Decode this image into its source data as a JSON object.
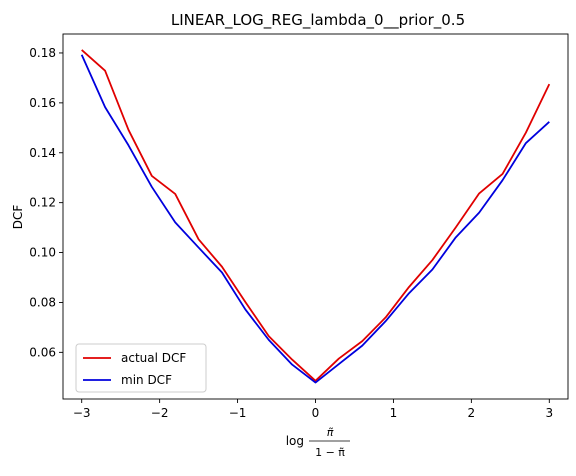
{
  "chart_data": {
    "type": "line",
    "title": "LINEAR_LOG_REG_lambda_0__prior_0.5",
    "ylabel": "DCF",
    "xlabel_prefix": "log",
    "xlabel_numerator": "π̃",
    "xlabel_denominator": "1 − π̃",
    "xlim": [
      -3.24,
      3.24
    ],
    "ylim": [
      0.0413,
      0.1876
    ],
    "x_ticks": [
      -3,
      -2,
      -1,
      0,
      1,
      2,
      3
    ],
    "x_tick_labels": [
      "−3",
      "−2",
      "−1",
      "0",
      "1",
      "2",
      "3"
    ],
    "y_ticks": [
      0.06,
      0.08,
      0.1,
      0.12,
      0.14,
      0.16,
      0.18
    ],
    "y_tick_labels": [
      "0.06",
      "0.08",
      "0.10",
      "0.12",
      "0.14",
      "0.16",
      "0.18"
    ],
    "legend_position": "lower-left",
    "x": [
      -3.0,
      -2.7,
      -2.4,
      -2.1,
      -1.8,
      -1.5,
      -1.2,
      -0.9,
      -0.6,
      -0.3,
      0.0,
      0.3,
      0.6,
      0.9,
      1.2,
      1.5,
      1.8,
      2.1,
      2.4,
      2.7,
      3.0
    ],
    "series": [
      {
        "name": "actual DCF",
        "color": "#e00000",
        "values": [
          0.1812,
          0.1729,
          0.1492,
          0.1307,
          0.1235,
          0.1053,
          0.0943,
          0.0802,
          0.0665,
          0.0571,
          0.0486,
          0.0575,
          0.0645,
          0.074,
          0.0862,
          0.097,
          0.1101,
          0.1237,
          0.1315,
          0.1481,
          0.1675
        ]
      },
      {
        "name": "min DCF",
        "color": "#0000dd",
        "values": [
          0.1793,
          0.1583,
          0.143,
          0.1263,
          0.1121,
          0.102,
          0.092,
          0.0772,
          0.065,
          0.0551,
          0.0479,
          0.0553,
          0.0627,
          0.0725,
          0.0837,
          0.0932,
          0.1061,
          0.116,
          0.129,
          0.1439,
          0.1524
        ]
      }
    ]
  }
}
